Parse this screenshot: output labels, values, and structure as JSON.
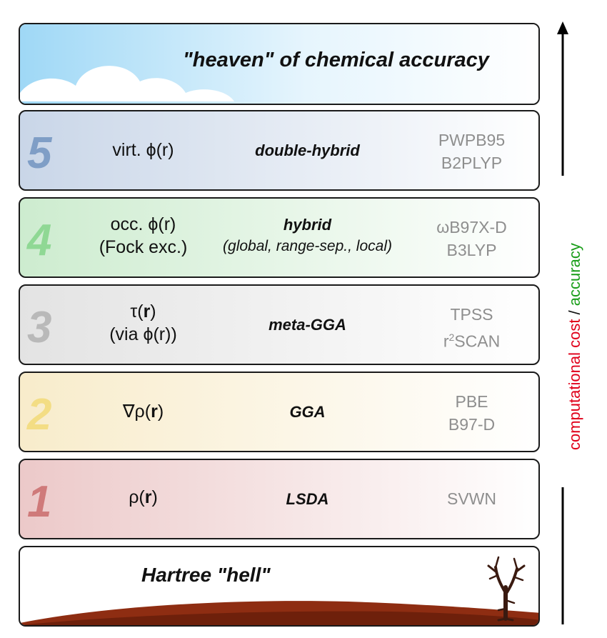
{
  "heaven": {
    "title": "\"heaven\" of chemical accuracy"
  },
  "hell": {
    "title": "Hartree \"hell\""
  },
  "rungs": [
    {
      "number": "5",
      "property": "virt. ϕ(r)",
      "property_line2": "",
      "name": "double-hybrid",
      "subname": "",
      "examples": [
        "PWPB95",
        "B2PLYP"
      ],
      "color": "#7f9ec6",
      "tint": "#c9d6e8"
    },
    {
      "number": "4",
      "property": "occ. ϕ(r)",
      "property_line2": "(Fock exc.)",
      "name": "hybrid",
      "subname": "(global, range-sep., local)",
      "examples": [
        "ωB97X-D",
        "B3LYP"
      ],
      "color": "#8fd894",
      "tint": "#cdeccf"
    },
    {
      "number": "3",
      "property_tau": "τ(",
      "property_r": "r",
      "property_close": ")",
      "property_line2": "(via ϕ(r))",
      "name": "meta-GGA",
      "subname": "",
      "examples": [
        "TPSS",
        "r",
        "2",
        "SCAN"
      ],
      "color": "#b9b9b9",
      "tint": "#e3e3e3"
    },
    {
      "number": "2",
      "property_pre": "∇ρ(",
      "property_r": "r",
      "property_close": ")",
      "name": "GGA",
      "subname": "",
      "examples": [
        "PBE",
        "B97-D"
      ],
      "color": "#f3dd84",
      "tint": "#f8eccb"
    },
    {
      "number": "1",
      "property_pre": "ρ(",
      "property_r": "r",
      "property_close": ")",
      "name": "LSDA",
      "subname": "",
      "examples": [
        "SVWN"
      ],
      "color": "#cf7a7a",
      "tint": "#ecc9c9"
    }
  ],
  "side": {
    "part1": "computational cost",
    "separator": " / ",
    "part2": "accuracy",
    "color1": "#e0001a",
    "color2": "#1a9e1a"
  }
}
